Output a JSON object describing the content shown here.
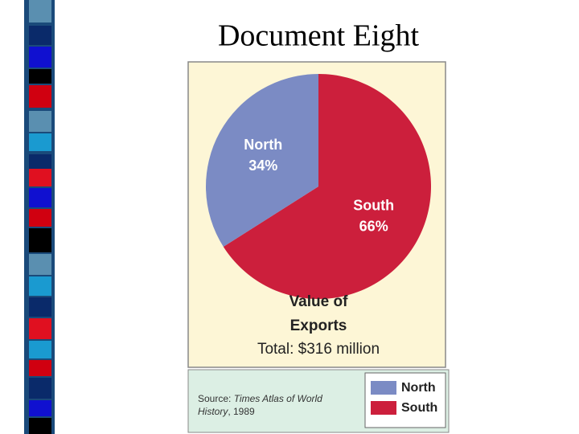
{
  "title": "Document Eight",
  "chart_data": {
    "type": "pie",
    "title": "Value of Exports",
    "subtitle": "Total: $316 million",
    "categories": [
      "North",
      "South"
    ],
    "values": [
      34,
      66
    ],
    "value_labels": [
      "34%",
      "66%"
    ],
    "colors": [
      "#7b8bc4",
      "#cc1f3c"
    ],
    "legend": "bottom-right",
    "source": {
      "prefix": "Source: ",
      "work": "Times Atlas of World",
      "work_end": "History",
      "suffix": ", 1989"
    }
  }
}
